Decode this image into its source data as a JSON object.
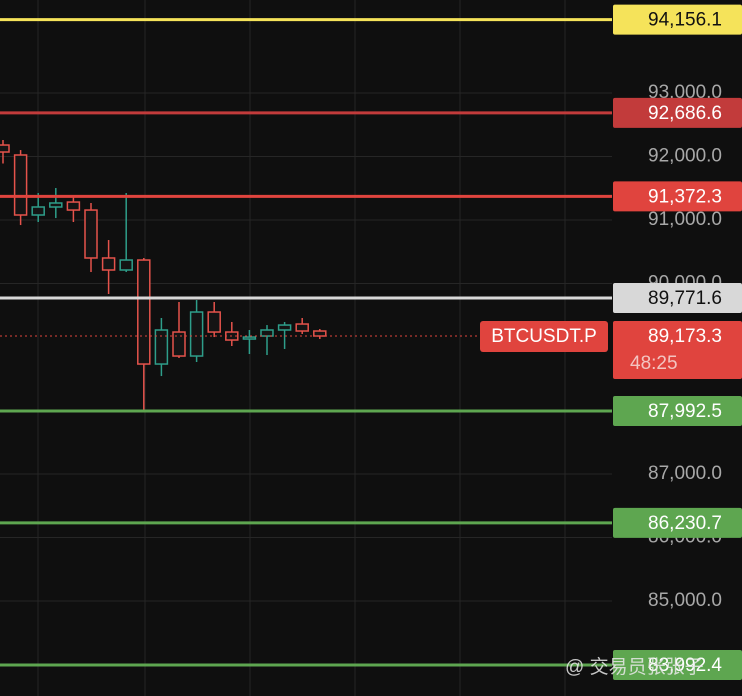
{
  "chart_data": {
    "type": "candlestick",
    "symbol": "BTCUSDT.P",
    "countdown": "48:25",
    "up_color": "#2e9e8a",
    "down_color": "#e5534b",
    "open": [
      92181,
      92024,
      91079,
      91205,
      91283,
      91157,
      90402,
      90213,
      90370,
      88732,
      89236,
      88858,
      89551,
      89236,
      89126,
      89173,
      89268,
      89362,
      89252
    ],
    "high": [
      92260,
      92102,
      91425,
      91504,
      91378,
      91268,
      90685,
      91425,
      90402,
      89457,
      89709,
      89740,
      89709,
      89394,
      89268,
      89346,
      89394,
      89457,
      89283
    ],
    "low": [
      91890,
      90921,
      90969,
      91031,
      90969,
      90181,
      89835,
      90181,
      87976,
      88543,
      88827,
      88764,
      89157,
      89016,
      88890,
      88874,
      88969,
      89205,
      89126
    ],
    "close": [
      92071,
      91079,
      91205,
      91268,
      91157,
      90402,
      90213,
      90370,
      88732,
      89268,
      88858,
      89551,
      89236,
      89110,
      89157,
      89268,
      89346,
      89252,
      89173.3
    ],
    "ylim": [
      83504,
      94465
    ],
    "yticks": [
      {
        "value": 85000,
        "label": "85,000.0"
      },
      {
        "value": 86000,
        "label": "86,000.0"
      },
      {
        "value": 87000,
        "label": "87,000.0"
      },
      {
        "value": 90000,
        "label": "90,000.0"
      },
      {
        "value": 91000,
        "label": "91,000.0"
      },
      {
        "value": 92000,
        "label": "92,000.0"
      },
      {
        "value": 93000,
        "label": "93,000.0"
      }
    ],
    "grid": true,
    "levels": [
      {
        "value": 94156.1,
        "label": "94,156.1",
        "color": "#f5e35a",
        "text_color": "#111111"
      },
      {
        "value": 92686.6,
        "label": "92,686.6",
        "color": "#c23b3b",
        "text_color": "#ffffff"
      },
      {
        "value": 91372.3,
        "label": "91,372.3",
        "color": "#e0443e",
        "text_color": "#ffffff"
      },
      {
        "value": 89771.6,
        "label": "89,771.6",
        "color": "#d8d8d8",
        "text_color": "#111111"
      },
      {
        "value": 87992.5,
        "label": "87,992.5",
        "color": "#5ea650",
        "text_color": "#ffffff"
      },
      {
        "value": 86230.7,
        "label": "86,230.7",
        "color": "#5ea650",
        "text_color": "#ffffff"
      },
      {
        "value": 83992.4,
        "label": "83,992.4",
        "color": "#5ea650",
        "text_color": "#ffffff"
      }
    ],
    "last_price": {
      "value": 89173.3,
      "label": "89,173.3",
      "color": "#e0443e"
    },
    "watermark": "@ 交易员张张子"
  }
}
